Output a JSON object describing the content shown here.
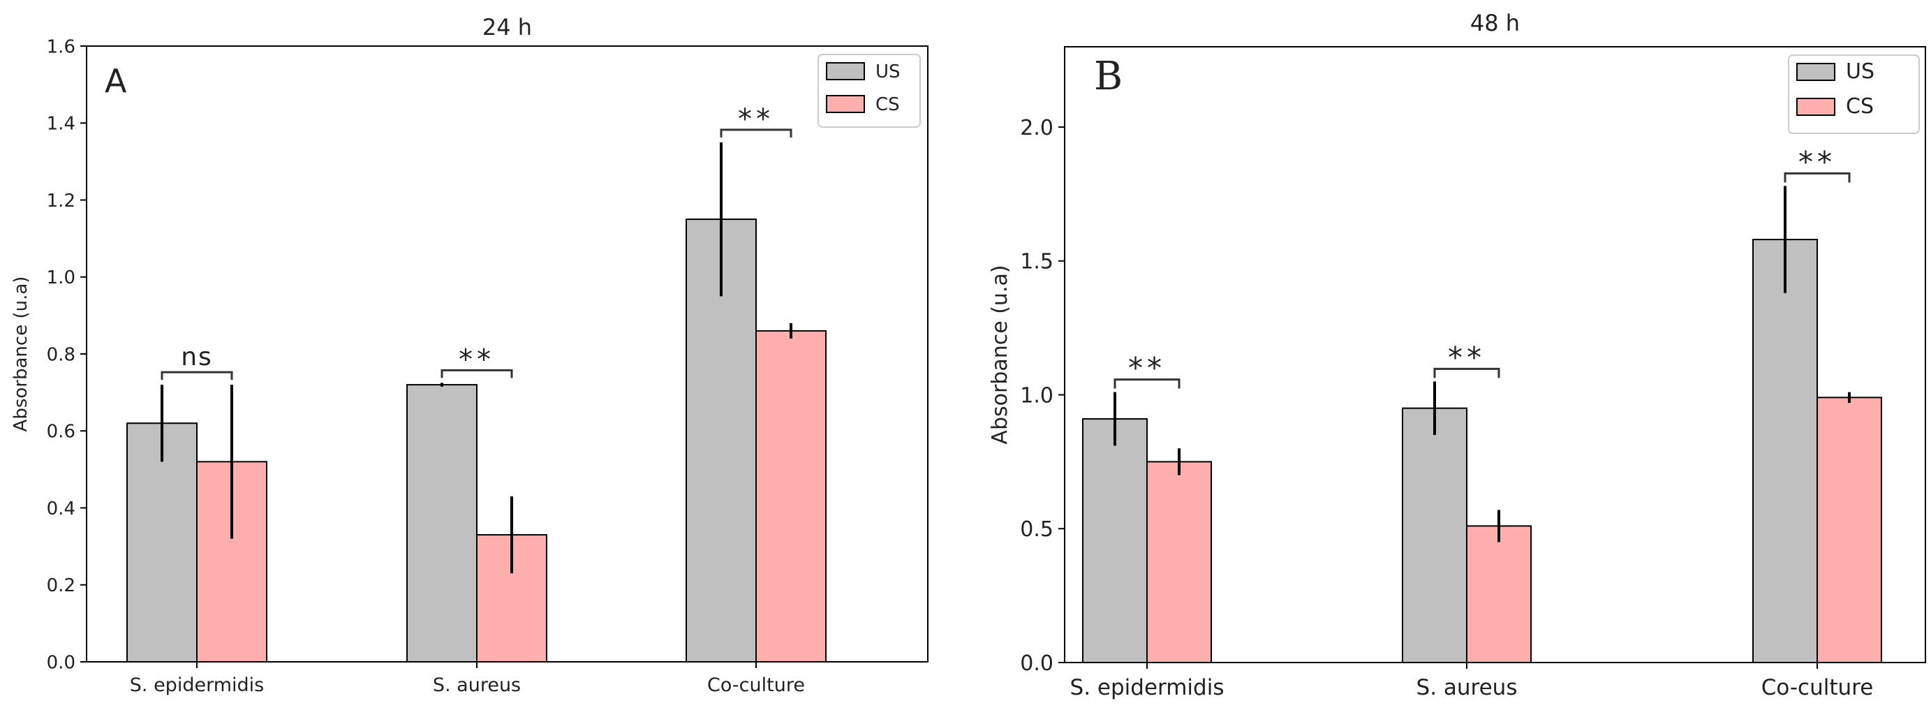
{
  "chart_data": [
    {
      "type": "bar",
      "panel_label": "A",
      "title": "24 h",
      "xlabel": "",
      "ylabel": "Absorbance (u.a)",
      "ylim": [
        0,
        1.6
      ],
      "yticks": [
        "0.0",
        "0.2",
        "0.4",
        "0.6",
        "0.8",
        "1.0",
        "1.2",
        "1.4",
        "1.6"
      ],
      "categories": [
        "S. epidermidis",
        "S. aureus",
        "Co-culture"
      ],
      "series": [
        {
          "name": "US",
          "color": "#c0c0c0",
          "values": [
            0.62,
            0.72,
            1.15
          ],
          "errors": [
            0.1,
            0.005,
            0.2
          ]
        },
        {
          "name": "CS",
          "color": "#ffaeae",
          "values": [
            0.52,
            0.33,
            0.86
          ],
          "errors": [
            0.2,
            0.1,
            0.02
          ]
        }
      ],
      "annotations": [
        "ns",
        "**",
        "**"
      ],
      "legend_position": "top-right",
      "grid": false
    },
    {
      "type": "bar",
      "panel_label": "B",
      "title": "48 h",
      "xlabel": "",
      "ylabel": "Absorbance (u.a)",
      "ylim": [
        0,
        2.3
      ],
      "yticks": [
        "0.0",
        "0.5",
        "1.0",
        "1.5",
        "2.0"
      ],
      "categories": [
        "S. epidermidis",
        "S. aureus",
        "Co-culture"
      ],
      "series": [
        {
          "name": "US",
          "color": "#c0c0c0",
          "values": [
            0.91,
            0.95,
            1.58
          ],
          "errors": [
            0.1,
            0.1,
            0.2
          ]
        },
        {
          "name": "CS",
          "color": "#ffaeae",
          "values": [
            0.75,
            0.51,
            0.99
          ],
          "errors": [
            0.05,
            0.06,
            0.02
          ]
        }
      ],
      "annotations": [
        "**",
        "**",
        "**"
      ],
      "legend_position": "top-right",
      "grid": false
    }
  ]
}
